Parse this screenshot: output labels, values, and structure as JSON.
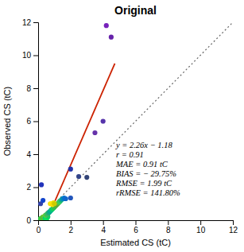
{
  "chart_data": {
    "type": "scatter",
    "title": "Original",
    "xlabel": "Estimated CS (tC)",
    "ylabel": "Observed CS (tC)",
    "xlim": [
      0,
      12
    ],
    "ylim": [
      0,
      12
    ],
    "xticks": [
      0,
      2,
      4,
      6,
      8,
      10,
      12
    ],
    "yticks": [
      0,
      2,
      4,
      6,
      8,
      10,
      12
    ],
    "grid": false,
    "series": [
      {
        "type": "scatter",
        "marker": "circle",
        "x": [
          0.05,
          0.1,
          0.12,
          0.18,
          0.22,
          0.25,
          0.28,
          0.32,
          0.38,
          0.42,
          0.48,
          0.55,
          0.6,
          0.45,
          0.52,
          0.58,
          0.65,
          0.7,
          0.75,
          0.8,
          0.85,
          0.9,
          0.95,
          1.0,
          1.05,
          1.1,
          1.15,
          1.2,
          1.25,
          1.3,
          1.35,
          1.4,
          1.45,
          1.5,
          1.55,
          1.6,
          1.7,
          2.0,
          0.75,
          0.82,
          0.88,
          0.95,
          1.0,
          0.15,
          0.2,
          0.3,
          2.0,
          2.5,
          3.0,
          4.0,
          3.5,
          4.2,
          4.5
        ],
        "values": [
          0.02,
          0.05,
          0.08,
          0.1,
          0.12,
          0.15,
          0.18,
          0.2,
          0.22,
          0.15,
          0.08,
          0.12,
          0.2,
          0.3,
          0.35,
          0.4,
          0.45,
          0.5,
          0.55,
          0.6,
          0.65,
          0.7,
          0.75,
          0.8,
          0.85,
          0.9,
          0.95,
          1.0,
          1.05,
          1.1,
          1.15,
          1.2,
          1.25,
          1.3,
          1.3,
          1.35,
          1.3,
          1.35,
          1.0,
          1.0,
          0.95,
          1.05,
          1.0,
          1.0,
          2.15,
          1.2,
          3.1,
          2.65,
          2.6,
          6.0,
          5.3,
          11.8,
          11.1
        ],
        "colors": [
          "#00bb55",
          "#00cc55",
          "#22bb44",
          "#33cc44",
          "#44cc33",
          "#55cc33",
          "#44bb44",
          "#66bb33",
          "#77cc22",
          "#00cc77",
          "#00dd66",
          "#00ee55",
          "#11cc66",
          "#55cc44",
          "#44bb55",
          "#33bb66",
          "#22aa77",
          "#11aa88",
          "#00aa99",
          "#00bb88",
          "#00cc77",
          "#11cc66",
          "#22cc55",
          "#33bb55",
          "#44bb44",
          "#55aa44",
          "#55aa33",
          "#66aa33",
          "#55bb44",
          "#44cc55",
          "#33cc66",
          "#22bb77",
          "#11aa88",
          "#0099aa",
          "#0088bb",
          "#0077cc",
          "#1166cc",
          "#2255bb",
          "#eedd00",
          "#ffee00",
          "#ffdd00",
          "#eedd00",
          "#cccc00",
          "#3344aa",
          "#2233bb",
          "#1144cc",
          "#2233aa",
          "#334488",
          "#334477",
          "#5533aa",
          "#6633aa",
          "#7722bb",
          "#6622aa"
        ]
      },
      {
        "type": "line",
        "x": [
          0,
          12
        ],
        "values": [
          0,
          12
        ],
        "color": "#666666",
        "line_style": "dotted"
      },
      {
        "type": "line",
        "x": [
          0.5221238938,
          4.7256637168
        ],
        "values": [
          0,
          9.5
        ],
        "color": "#cc2200",
        "line_style": "solid"
      }
    ],
    "annotation": {
      "x": 4.8,
      "y": 1.5,
      "lines": [
        "y = 2.26x − 1.18",
        "r = 0.91",
        "MAE = 0.91 tC",
        "BIAS = − 29.75%",
        "RMSE = 1.99 tC",
        "rRMSE = 141.80%"
      ]
    }
  }
}
